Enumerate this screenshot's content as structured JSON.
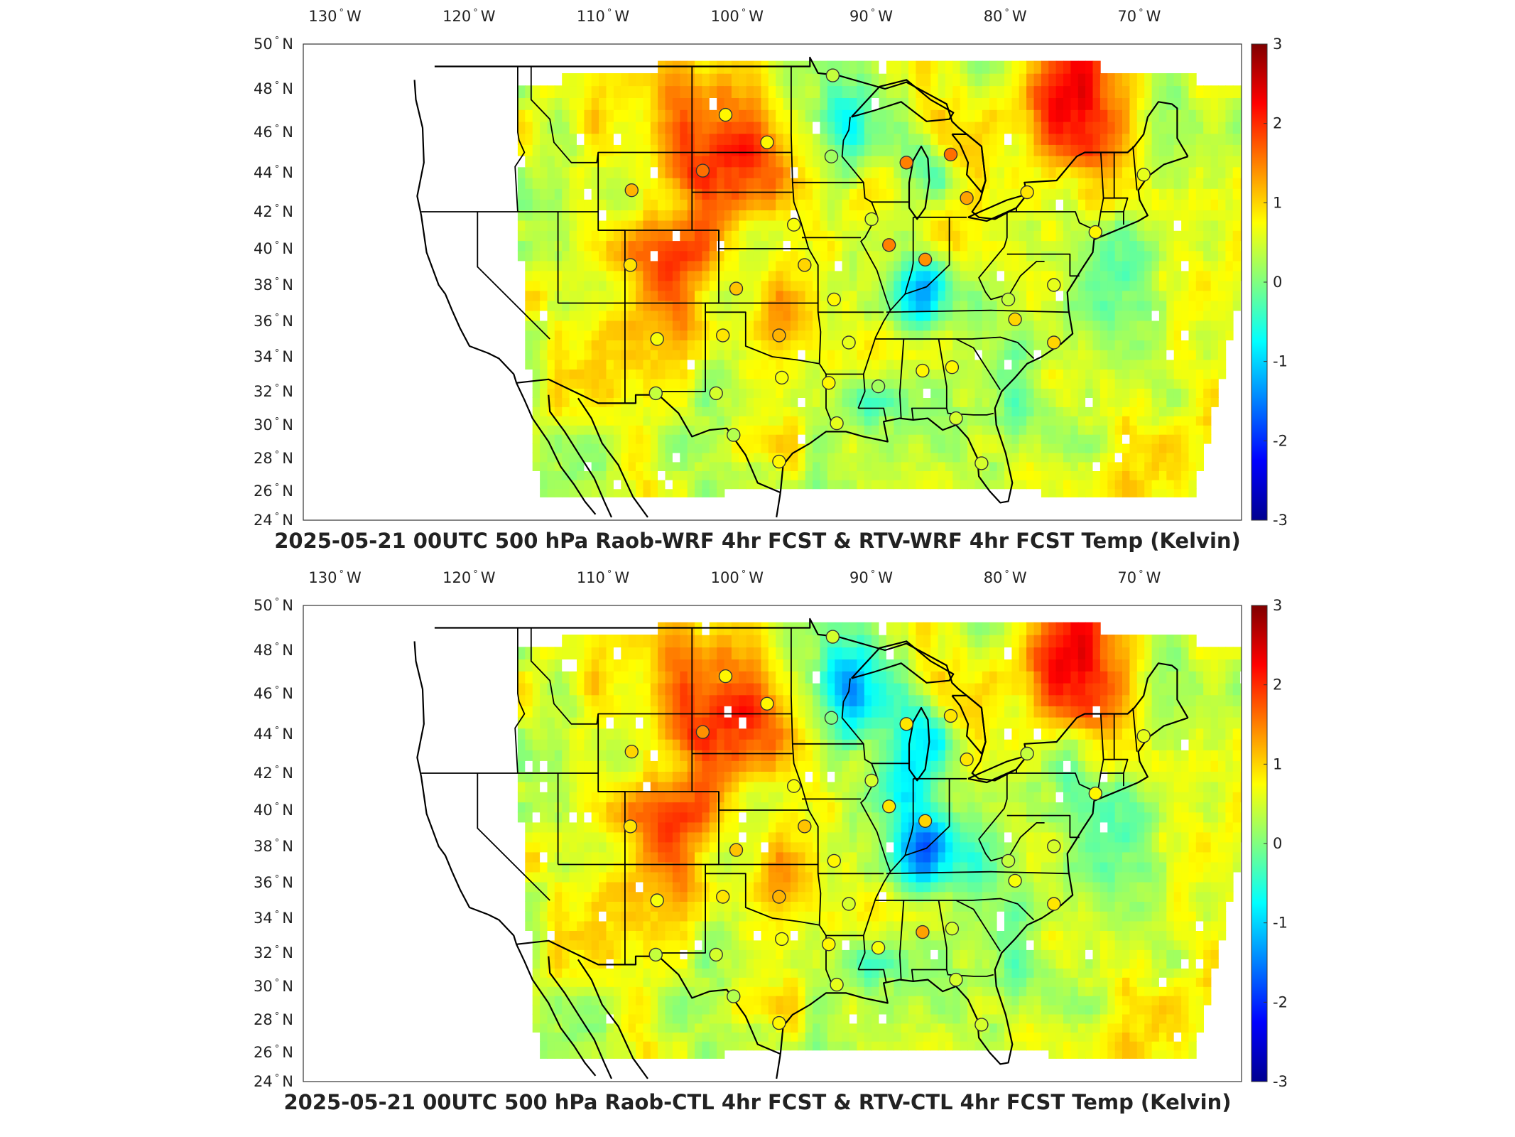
{
  "maps": [
    {
      "id": "top",
      "title": "2025-05-21 00UTC 500 hPa Raob-WRF 4hr FCST & RTV-WRF 4hr FCST Temp (Kelvin)",
      "lon_ticks": [
        "130",
        "120",
        "110",
        "100",
        "90",
        "80",
        "70"
      ],
      "lon_suffix": "W",
      "lat_ticks": [
        "50",
        "48",
        "46",
        "44",
        "42",
        "40",
        "38",
        "36",
        "34",
        "32",
        "30",
        "28",
        "26",
        "24"
      ],
      "lat_suffix": "N",
      "colorbar_ticks": [
        "3",
        "2",
        "1",
        "0",
        "-1",
        "-2",
        "-3"
      ],
      "colorbar_range": [
        -3,
        3
      ],
      "colormap": "jet",
      "extent": {
        "lon": [
          -133,
          -63
        ],
        "lat": [
          24,
          50
        ]
      }
    },
    {
      "id": "bottom",
      "title": "2025-05-21 00UTC 500 hPa Raob-CTL 4hr FCST & RTV-CTL 4hr FCST Temp (Kelvin)",
      "lon_ticks": [
        "130",
        "120",
        "110",
        "100",
        "90",
        "80",
        "70"
      ],
      "lon_suffix": "W",
      "lat_ticks": [
        "50",
        "48",
        "46",
        "44",
        "42",
        "40",
        "38",
        "36",
        "34",
        "32",
        "30",
        "28",
        "26",
        "24"
      ],
      "lat_suffix": "N",
      "colorbar_ticks": [
        "3",
        "2",
        "1",
        "0",
        "-1",
        "-2",
        "-3"
      ],
      "colorbar_range": [
        -3,
        3
      ],
      "colormap": "jet",
      "extent": {
        "lon": [
          -133,
          -63
        ],
        "lat": [
          24,
          50
        ]
      }
    }
  ],
  "colors": {
    "jet_stops": [
      "#00008f",
      "#0000ff",
      "#0080ff",
      "#00ffff",
      "#80ff80",
      "#ffff00",
      "#ff8000",
      "#ff0000",
      "#800000"
    ],
    "background_field": "#a8e85a",
    "border": "#000000"
  },
  "chart_data": {
    "type": "heatmap",
    "colorbar_label": "Temp (Kelvin)",
    "vmin": -3,
    "vmax": 3,
    "raob_stations": [
      {
        "lon": -93.5,
        "lat": 48.6,
        "top": 0.4,
        "bottom": 0.5
      },
      {
        "lon": -101.5,
        "lat": 46.8,
        "top": 0.8,
        "bottom": 0.8
      },
      {
        "lon": -98.4,
        "lat": 45.5,
        "top": 0.8,
        "bottom": 0.8
      },
      {
        "lon": -93.6,
        "lat": 44.8,
        "top": 0.2,
        "bottom": 0.0
      },
      {
        "lon": -103.2,
        "lat": 44.1,
        "top": 1.6,
        "bottom": 1.4
      },
      {
        "lon": -108.5,
        "lat": 43.1,
        "top": 1.2,
        "bottom": 1.0
      },
      {
        "lon": -88.0,
        "lat": 44.5,
        "top": 1.5,
        "bottom": 0.9
      },
      {
        "lon": -84.7,
        "lat": 44.9,
        "top": 1.6,
        "bottom": 0.9
      },
      {
        "lon": -83.5,
        "lat": 42.7,
        "top": 1.3,
        "bottom": 0.9
      },
      {
        "lon": -79.0,
        "lat": 43.0,
        "top": 0.9,
        "bottom": 0.4
      },
      {
        "lon": -70.3,
        "lat": 43.9,
        "top": 0.6,
        "bottom": 0.6
      },
      {
        "lon": -90.6,
        "lat": 41.6,
        "top": 0.5,
        "bottom": 0.5
      },
      {
        "lon": -96.4,
        "lat": 41.3,
        "top": 0.7,
        "bottom": 0.7
      },
      {
        "lon": -89.3,
        "lat": 40.2,
        "top": 1.5,
        "bottom": 0.9
      },
      {
        "lon": -86.6,
        "lat": 39.4,
        "top": 1.4,
        "bottom": 1.0
      },
      {
        "lon": -108.6,
        "lat": 39.1,
        "top": 0.9,
        "bottom": 0.9
      },
      {
        "lon": -95.6,
        "lat": 39.1,
        "top": 1.0,
        "bottom": 1.1
      },
      {
        "lon": -100.7,
        "lat": 37.8,
        "top": 1.1,
        "bottom": 1.1
      },
      {
        "lon": -93.4,
        "lat": 37.2,
        "top": 0.8,
        "bottom": 0.8
      },
      {
        "lon": -80.4,
        "lat": 37.2,
        "top": 0.4,
        "bottom": 0.4
      },
      {
        "lon": -73.9,
        "lat": 40.9,
        "top": 0.8,
        "bottom": 0.8
      },
      {
        "lon": -77.0,
        "lat": 38.0,
        "top": 0.6,
        "bottom": 0.5
      },
      {
        "lon": -79.9,
        "lat": 36.1,
        "top": 1.0,
        "bottom": 0.7
      },
      {
        "lon": -106.6,
        "lat": 35.0,
        "top": 0.7,
        "bottom": 0.7
      },
      {
        "lon": -101.7,
        "lat": 35.2,
        "top": 0.9,
        "bottom": 0.9
      },
      {
        "lon": -97.5,
        "lat": 35.2,
        "top": 1.2,
        "bottom": 1.2
      },
      {
        "lon": -92.3,
        "lat": 34.8,
        "top": 0.6,
        "bottom": 0.5
      },
      {
        "lon": -77.0,
        "lat": 34.8,
        "top": 1.0,
        "bottom": 0.9
      },
      {
        "lon": -86.8,
        "lat": 33.2,
        "top": 0.8,
        "bottom": 1.3
      },
      {
        "lon": -84.6,
        "lat": 33.4,
        "top": 0.8,
        "bottom": 0.5
      },
      {
        "lon": -97.3,
        "lat": 32.8,
        "top": 0.7,
        "bottom": 0.7
      },
      {
        "lon": -93.8,
        "lat": 32.5,
        "top": 0.8,
        "bottom": 0.8
      },
      {
        "lon": -90.1,
        "lat": 32.3,
        "top": 0.2,
        "bottom": 0.7
      },
      {
        "lon": -102.2,
        "lat": 31.9,
        "top": 0.5,
        "bottom": 0.5
      },
      {
        "lon": -106.7,
        "lat": 31.9,
        "top": 0.4,
        "bottom": 0.4
      },
      {
        "lon": -93.2,
        "lat": 30.1,
        "top": 0.6,
        "bottom": 0.6
      },
      {
        "lon": -84.3,
        "lat": 30.4,
        "top": 0.5,
        "bottom": 0.5
      },
      {
        "lon": -100.9,
        "lat": 29.4,
        "top": 0.3,
        "bottom": 0.3
      },
      {
        "lon": -97.5,
        "lat": 27.8,
        "top": 0.8,
        "bottom": 0.8
      },
      {
        "lon": -82.4,
        "lat": 27.7,
        "top": 0.5,
        "bottom": 0.5
      }
    ]
  }
}
